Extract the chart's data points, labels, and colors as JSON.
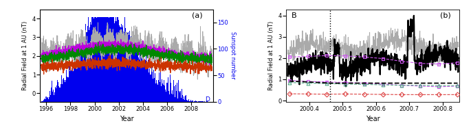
{
  "panel_a": {
    "title": "(a)",
    "xlabel": "Year",
    "ylabel": "Radial Field at 1 AU (nT)",
    "ylabel_right": "Sunspot number",
    "xlim": [
      1995.5,
      2009.8
    ],
    "ylim_left": [
      -0.45,
      4.5
    ],
    "ylim_right": [
      0,
      175
    ],
    "xticks": [
      1996,
      1998,
      2000,
      2002,
      2004,
      2006,
      2008
    ],
    "yticks_left": [
      0,
      1,
      2,
      3,
      4
    ],
    "yticks_right": [
      0,
      50,
      100,
      150
    ],
    "sunspot_color": "#0000EE",
    "line_gray_color": "#AAAAAA",
    "line_purple_color": "#BB00DD",
    "line_green_color": "#008800",
    "line_red_color": "#CC3300",
    "label_A": [
      1996.0,
      -0.32
    ],
    "label_B": [
      2000.5,
      0.65
    ],
    "label_C": [
      2004.5,
      0.35
    ],
    "label_D": [
      2009.3,
      -0.32
    ]
  },
  "panel_b": {
    "title": "(b)",
    "xlabel": "Year",
    "ylabel": "Radial Field at 1 AU (nT)",
    "xlim": [
      2000.33,
      2000.85
    ],
    "ylim": [
      -0.05,
      4.3
    ],
    "xticks": [
      2000.4,
      2000.5,
      2000.6,
      2000.7,
      2000.8
    ],
    "yticks": [
      0,
      1,
      2,
      3,
      4
    ],
    "vline_x": 2000.463,
    "gray_color": "#AAAAAA",
    "black_color": "#000000",
    "purple_color": "#CC55EE",
    "teal_color": "#55AA88",
    "red_color": "#DD4444"
  }
}
